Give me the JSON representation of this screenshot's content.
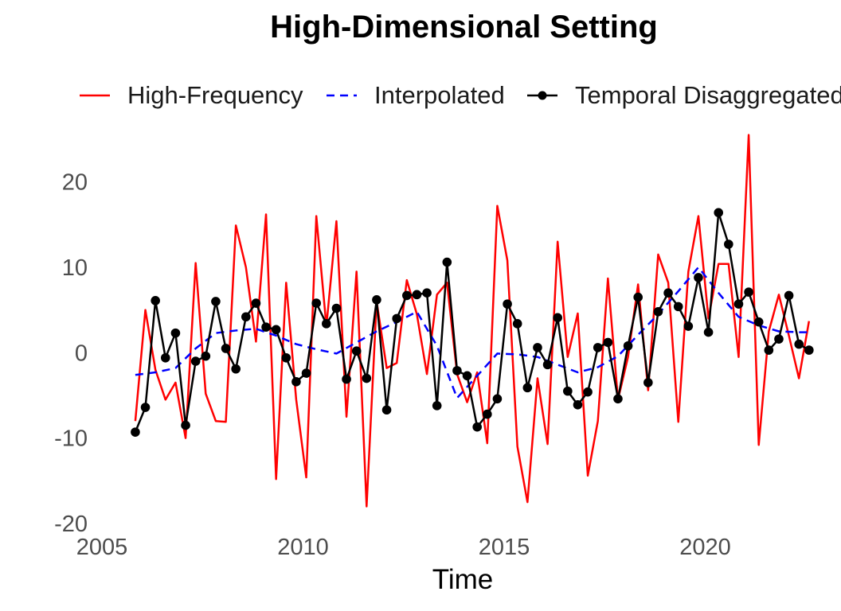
{
  "chart_data": {
    "type": "line",
    "title": "High-Dimensional Setting",
    "xlabel": "Time",
    "ylabel": "",
    "xlim": [
      2005,
      2022.9
    ],
    "ylim": [
      -20,
      25
    ],
    "x_ticks": [
      2005,
      2010,
      2015,
      2020
    ],
    "y_ticks": [
      -20,
      -10,
      0,
      10,
      20
    ],
    "x_tick_labels": [
      "2005",
      "2010",
      "2015",
      "2020"
    ],
    "y_tick_labels": [
      "-20",
      "-10",
      "0",
      "10",
      "20"
    ],
    "grid": false,
    "legend_position": "top",
    "series": [
      {
        "name": "High-Frequency",
        "color": "#ff0000",
        "style": "solid",
        "x": [
          2005.83,
          2006.08,
          2006.33,
          2006.58,
          2006.83,
          2007.08,
          2007.33,
          2007.58,
          2007.83,
          2008.08,
          2008.33,
          2008.58,
          2008.83,
          2009.08,
          2009.33,
          2009.58,
          2009.83,
          2010.08,
          2010.33,
          2010.58,
          2010.83,
          2011.08,
          2011.33,
          2011.58,
          2011.83,
          2012.08,
          2012.33,
          2012.58,
          2012.83,
          2013.08,
          2013.33,
          2013.58,
          2013.83,
          2014.08,
          2014.33,
          2014.58,
          2014.83,
          2015.08,
          2015.33,
          2015.58,
          2015.83,
          2016.08,
          2016.33,
          2016.58,
          2016.83,
          2017.08,
          2017.33,
          2017.58,
          2017.83,
          2018.08,
          2018.33,
          2018.58,
          2018.83,
          2019.08,
          2019.33,
          2019.58,
          2019.83,
          2020.08,
          2020.33,
          2020.58,
          2020.83,
          2021.08,
          2021.33,
          2021.58,
          2021.83,
          2022.08,
          2022.33,
          2022.58
        ],
        "values": [
          -8.0,
          5.0,
          -2.0,
          -5.5,
          -3.5,
          -10.0,
          10.5,
          -4.8,
          -8.0,
          -8.1,
          14.9,
          10.0,
          1.3,
          16.2,
          -14.8,
          8.2,
          -5.5,
          -14.6,
          16.0,
          3.1,
          15.4,
          -7.5,
          9.5,
          -18.0,
          6.0,
          -1.8,
          -1.2,
          8.5,
          4.5,
          -2.5,
          6.8,
          8.2,
          -2.5,
          -5.8,
          -2.3,
          -10.6,
          17.2,
          10.8,
          -11.0,
          -17.5,
          -3.0,
          -10.7,
          13.0,
          -0.5,
          4.6,
          -14.4,
          -8.0,
          8.7,
          -5.5,
          -0.5,
          8.0,
          -4.4,
          11.5,
          8.2,
          -8.1,
          9.5,
          16.0,
          4.0,
          10.4,
          10.4,
          -0.5,
          25.5,
          -10.8,
          2.5,
          6.8,
          2.0,
          -3.0,
          3.7
        ]
      },
      {
        "name": "Interpolated",
        "color": "#0000ff",
        "style": "dashed",
        "x": [
          2005.83,
          2006.33,
          2006.83,
          2007.33,
          2007.83,
          2008.33,
          2008.83,
          2009.33,
          2009.83,
          2010.33,
          2010.83,
          2011.33,
          2011.83,
          2012.33,
          2012.83,
          2013.33,
          2013.83,
          2014.33,
          2014.83,
          2015.33,
          2015.83,
          2016.33,
          2016.83,
          2017.33,
          2017.83,
          2018.33,
          2018.83,
          2019.33,
          2019.83,
          2020.33,
          2020.83,
          2021.33,
          2021.83,
          2022.33,
          2022.58
        ],
        "values": [
          -2.6,
          -2.3,
          -1.8,
          0.5,
          2.3,
          2.6,
          2.8,
          2.0,
          1.0,
          0.4,
          -0.1,
          1.2,
          2.5,
          3.6,
          4.8,
          0.8,
          -5.3,
          -2.7,
          -0.1,
          -0.2,
          -0.5,
          -1.4,
          -2.3,
          -1.7,
          -0.4,
          2.1,
          4.5,
          7.2,
          10.0,
          7.0,
          4.2,
          3.2,
          2.5,
          2.4,
          2.4
        ]
      },
      {
        "name": "Temporal Disaggregated",
        "color": "#000000",
        "style": "solid-points",
        "x": [
          2005.83,
          2006.08,
          2006.33,
          2006.58,
          2006.83,
          2007.08,
          2007.33,
          2007.58,
          2007.83,
          2008.08,
          2008.33,
          2008.58,
          2008.83,
          2009.08,
          2009.33,
          2009.58,
          2009.83,
          2010.08,
          2010.33,
          2010.58,
          2010.83,
          2011.08,
          2011.33,
          2011.58,
          2011.83,
          2012.08,
          2012.33,
          2012.58,
          2012.83,
          2013.08,
          2013.33,
          2013.58,
          2013.83,
          2014.08,
          2014.33,
          2014.58,
          2014.83,
          2015.08,
          2015.33,
          2015.58,
          2015.83,
          2016.08,
          2016.33,
          2016.58,
          2016.83,
          2017.08,
          2017.33,
          2017.58,
          2017.83,
          2018.08,
          2018.33,
          2018.58,
          2018.83,
          2019.08,
          2019.33,
          2019.58,
          2019.83,
          2020.08,
          2020.33,
          2020.58,
          2020.83,
          2021.08,
          2021.33,
          2021.58,
          2021.83,
          2022.08,
          2022.33,
          2022.58
        ],
        "values": [
          -9.3,
          -6.4,
          6.1,
          -0.6,
          2.3,
          -8.5,
          -1.0,
          -0.4,
          6.0,
          0.5,
          -1.9,
          4.2,
          5.8,
          3.0,
          2.7,
          -0.6,
          -3.4,
          -2.4,
          5.8,
          3.4,
          5.2,
          -3.1,
          0.2,
          -3.0,
          6.2,
          -6.7,
          4.0,
          6.7,
          6.8,
          7.0,
          -6.2,
          10.6,
          -2.1,
          -2.7,
          -8.7,
          -7.2,
          -5.4,
          5.7,
          3.4,
          -4.1,
          0.6,
          -1.4,
          4.1,
          -4.5,
          -6.1,
          -4.6,
          0.6,
          1.2,
          -5.4,
          0.8,
          6.5,
          -3.5,
          4.8,
          7.0,
          5.4,
          3.1,
          8.8,
          2.4,
          16.4,
          12.7,
          5.7,
          7.1,
          3.6,
          0.3,
          1.6,
          6.7,
          1.0,
          0.3
        ]
      }
    ]
  }
}
